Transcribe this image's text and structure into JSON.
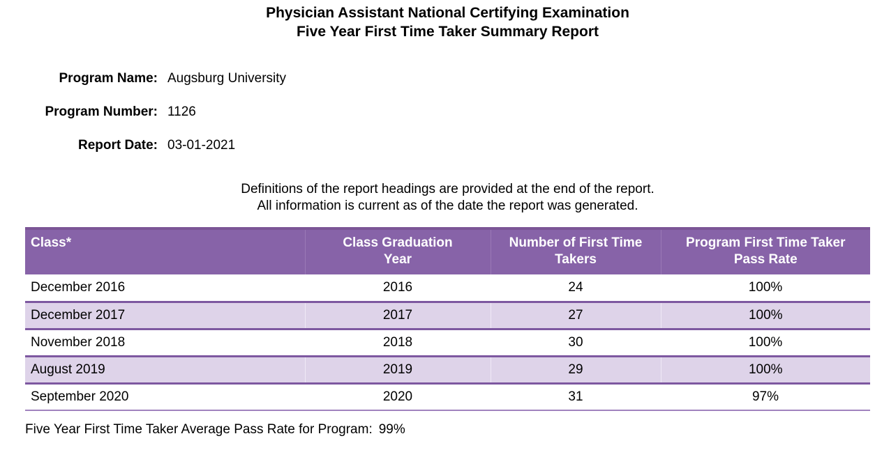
{
  "title": {
    "line1": "Physician Assistant National Certifying Examination",
    "line2": "Five Year First Time Taker Summary Report"
  },
  "meta": {
    "fields": [
      {
        "label": "Program Name:",
        "value": "Augsburg University"
      },
      {
        "label": "Program Number:",
        "value": "1126"
      },
      {
        "label": "Report Date:",
        "value": "03-01-2021"
      }
    ]
  },
  "notes": {
    "line1": "Definitions of the report headings are provided at the end of the report.",
    "line2": "All information is current as of the date the report was generated."
  },
  "table": {
    "headers": [
      "Class*",
      "Class Graduation Year",
      "Number of First Time Takers",
      "Program First Time Taker Pass Rate"
    ],
    "rows": [
      [
        "December 2016",
        "2016",
        "24",
        "100%"
      ],
      [
        "December 2017",
        "2017",
        "27",
        "100%"
      ],
      [
        "November 2018",
        "2018",
        "30",
        "100%"
      ],
      [
        "August 2019",
        "2019",
        "29",
        "100%"
      ],
      [
        "September 2020",
        "2020",
        "31",
        "97%"
      ]
    ]
  },
  "summary": {
    "label": "Five Year First Time Taker Average Pass Rate for Program:",
    "value": "99%"
  },
  "colors": {
    "header_bg": "#8763A8",
    "header_top_border": "#7B5596",
    "shaded_row_bg": "#DED3E9",
    "shaded_row_border": "#7D58A0",
    "table_bottom_border": "#A082BE",
    "header_text": "#FFFFFF",
    "body_text": "#000000"
  }
}
